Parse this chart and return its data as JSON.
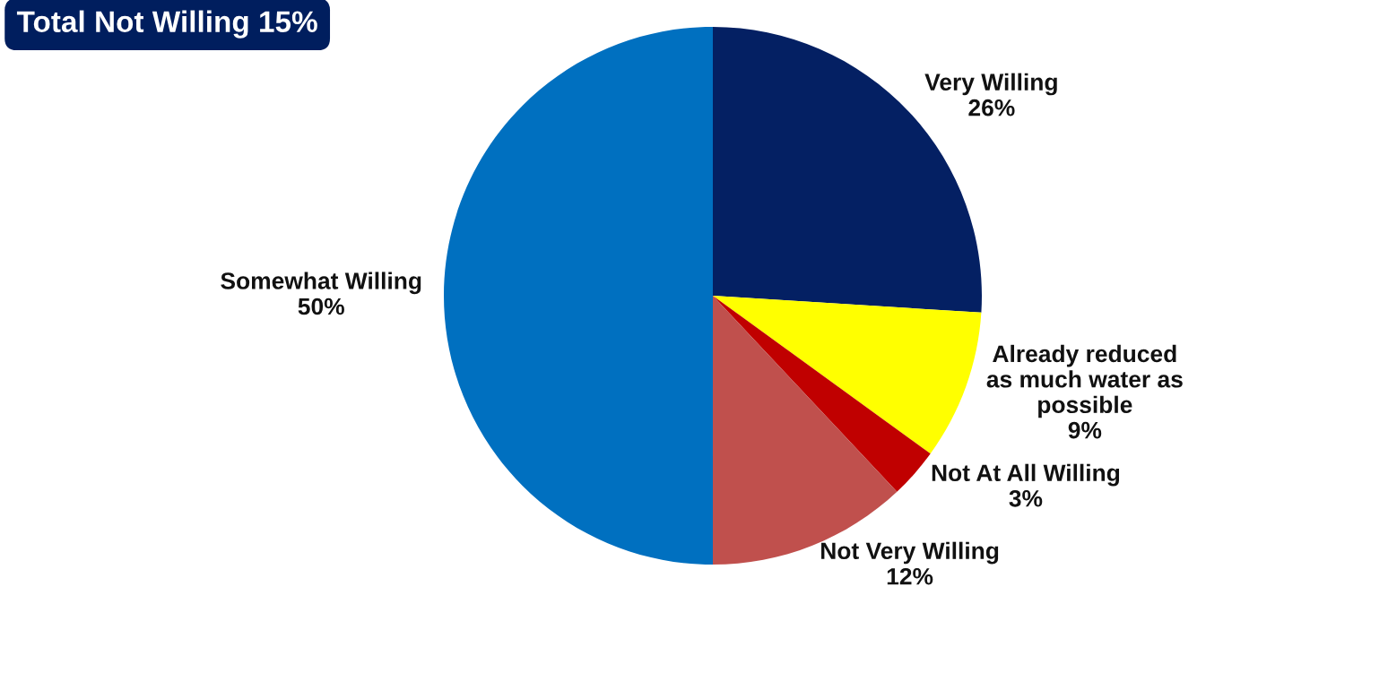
{
  "chart_data": {
    "type": "pie",
    "annotations": [
      "Total Not Willing 15%"
    ],
    "categories": [
      "Very Willing",
      "Already reduced as much water as possible",
      "Not At All Willing",
      "Not Very Willing",
      "Somewhat Willing"
    ],
    "values": [
      26,
      9,
      3,
      12,
      50
    ],
    "colors": [
      "#042063",
      "#ffff00",
      "#c00000",
      "#c0504d",
      "#0070c0"
    ],
    "value_labels": [
      "26%",
      "9%",
      "3%",
      "12%",
      "50%"
    ]
  }
}
